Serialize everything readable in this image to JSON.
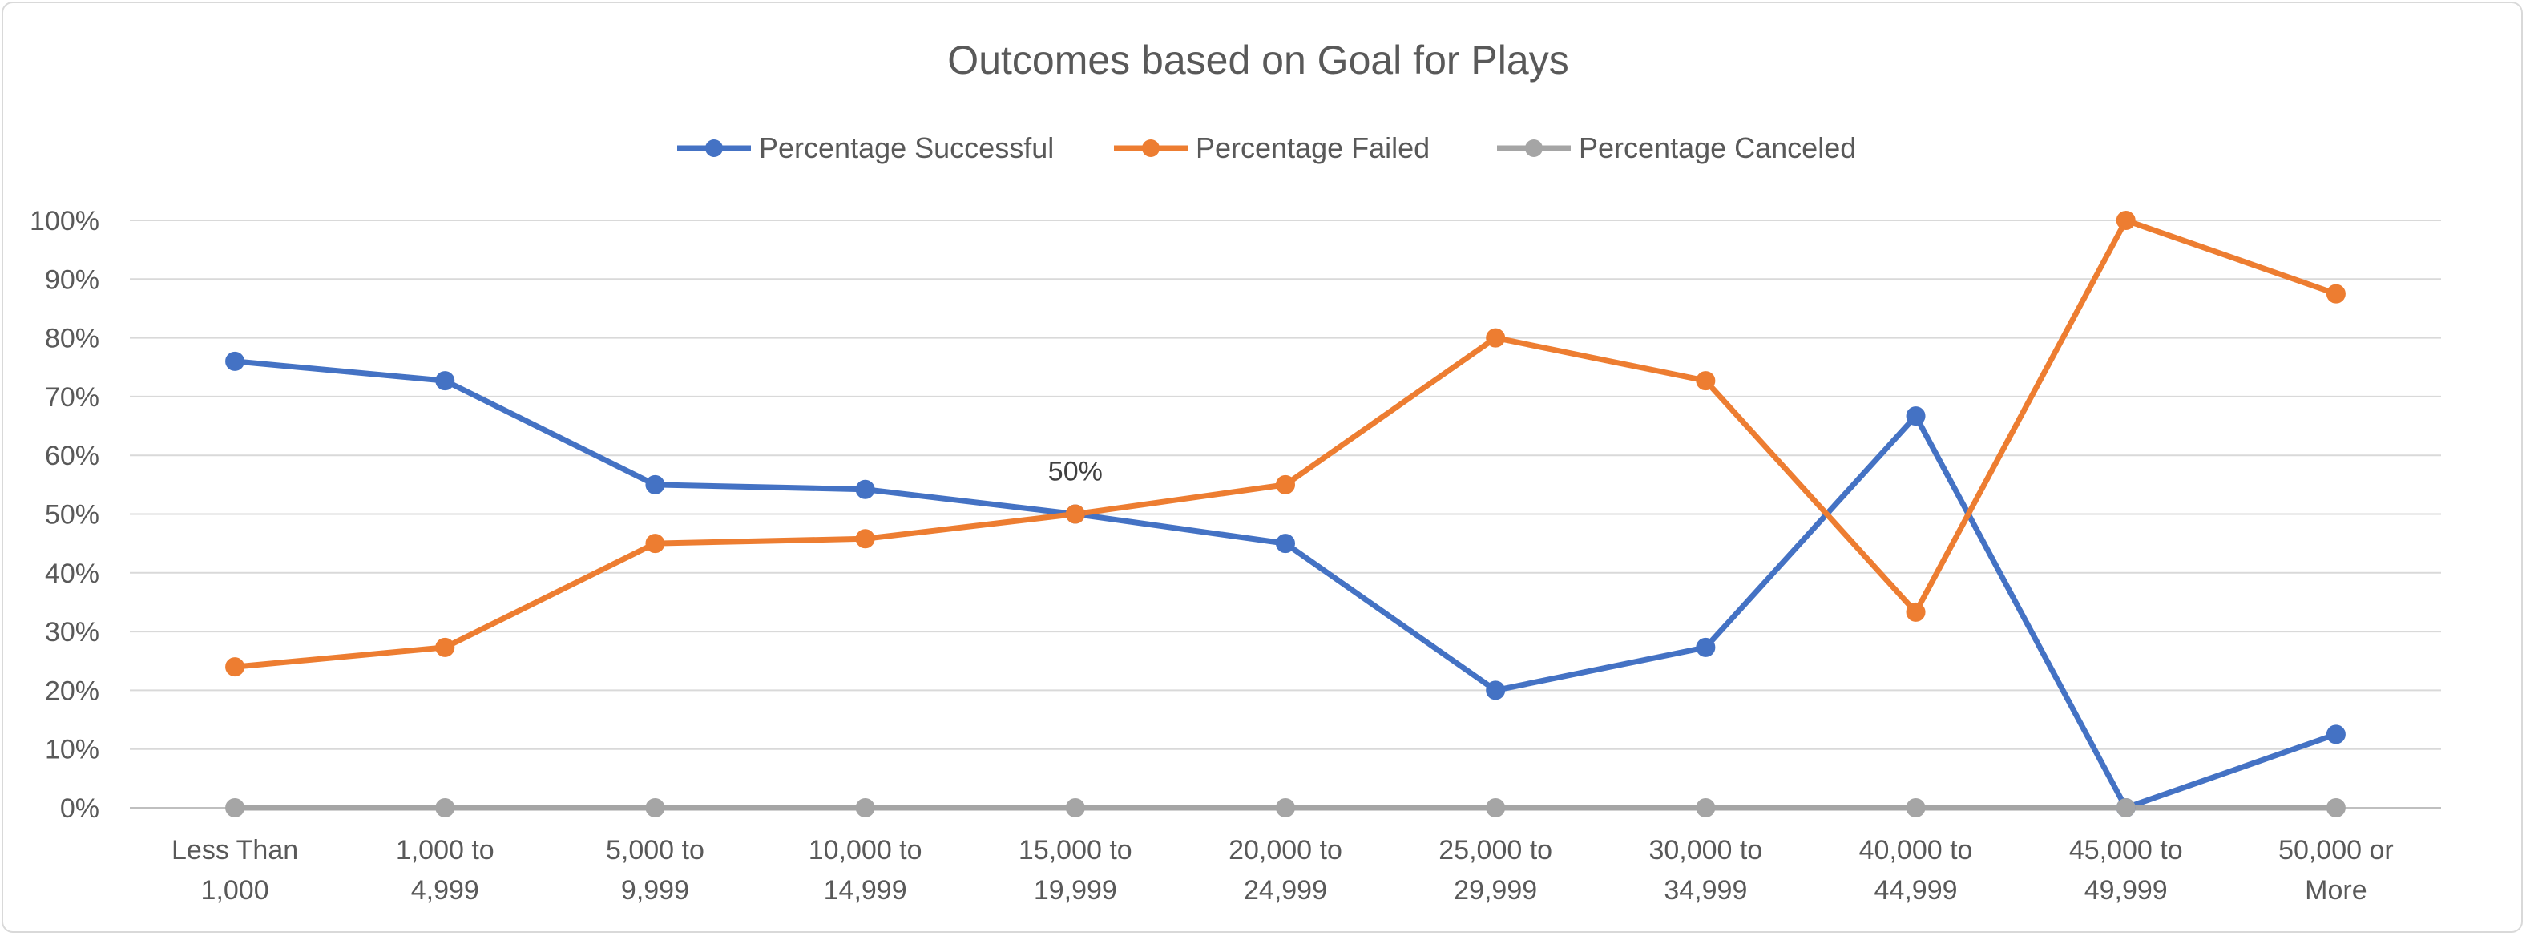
{
  "chart_data": {
    "type": "line",
    "title": "Outcomes based on Goal for Plays",
    "xlabel": "",
    "ylabel": "",
    "categories": [
      [
        "Less Than",
        "1,000"
      ],
      [
        "1,000 to",
        "4,999"
      ],
      [
        "5,000 to",
        "9,999"
      ],
      [
        "10,000 to",
        "14,999"
      ],
      [
        "15,000 to",
        "19,999"
      ],
      [
        "20,000 to",
        "24,999"
      ],
      [
        "25,000 to",
        "29,999"
      ],
      [
        "30,000 to",
        "34,999"
      ],
      [
        "40,000 to",
        "44,999"
      ],
      [
        "45,000 to",
        "49,999"
      ],
      [
        "50,000 or",
        "More"
      ]
    ],
    "ylim": [
      0,
      100
    ],
    "yticks": [
      "0%",
      "10%",
      "20%",
      "30%",
      "40%",
      "50%",
      "60%",
      "70%",
      "80%",
      "90%",
      "100%"
    ],
    "grid": true,
    "legend_position": "top",
    "series": [
      {
        "name": "Percentage Successful",
        "color": "#4472C4",
        "values": [
          76,
          72.7,
          55,
          54.2,
          50,
          45,
          20,
          27.3,
          66.7,
          0,
          12.5
        ]
      },
      {
        "name": "Percentage Failed",
        "color": "#ED7D31",
        "values": [
          24,
          27.3,
          45,
          45.8,
          50,
          55,
          80,
          72.7,
          33.3,
          100,
          87.5
        ]
      },
      {
        "name": "Percentage Canceled",
        "color": "#A5A5A5",
        "values": [
          0,
          0,
          0,
          0,
          0,
          0,
          0,
          0,
          0,
          0,
          0
        ]
      }
    ],
    "annotations": [
      {
        "text": "50%",
        "category_index": 4,
        "value": 50
      }
    ]
  }
}
